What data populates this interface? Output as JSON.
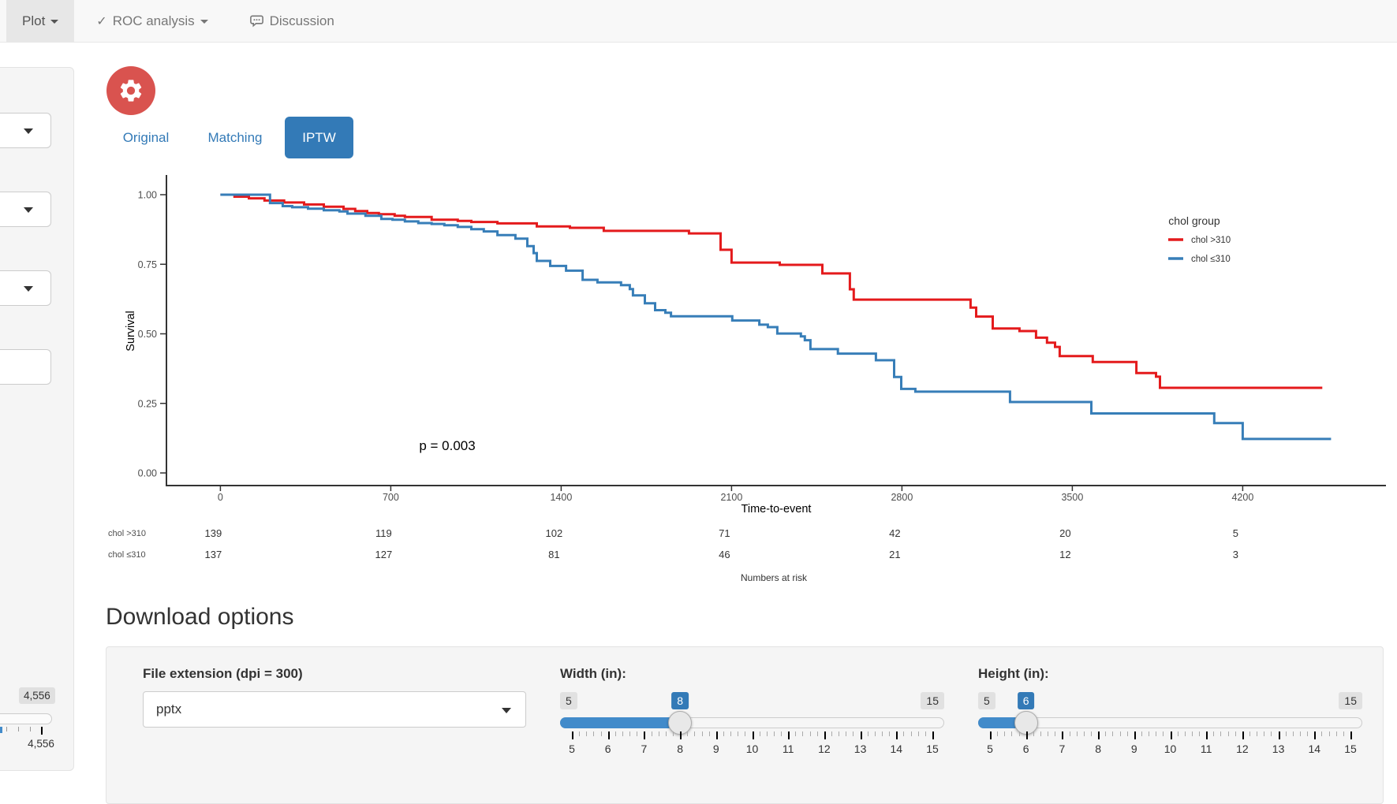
{
  "navbar": {
    "items": [
      {
        "label": "Plot",
        "active": true,
        "caret": true
      },
      {
        "label": "ROC analysis",
        "active": false,
        "caret": true,
        "icon": "check"
      },
      {
        "label": "Discussion",
        "active": false,
        "icon": "comment"
      }
    ]
  },
  "sidebar": {
    "value_badge": "4,556",
    "tick_label": "4,556"
  },
  "plot_tabs": {
    "items": [
      {
        "label": "Original",
        "active": false
      },
      {
        "label": "Matching",
        "active": false
      },
      {
        "label": "IPTW",
        "active": true
      }
    ]
  },
  "chart_data": {
    "type": "line",
    "subtype": "kaplan-meier-step",
    "xlabel": "Time-to-event",
    "ylabel": "Survival",
    "xlim": [
      0,
      4560
    ],
    "ylim": [
      0,
      1
    ],
    "xticks": [
      0,
      700,
      1400,
      2100,
      2800,
      3500,
      4200
    ],
    "yticks": [
      {
        "value": 0,
        "label": "0.00"
      },
      {
        "value": 0.25,
        "label": "0.25"
      },
      {
        "value": 0.5,
        "label": "0.50"
      },
      {
        "value": 0.75,
        "label": "0.75"
      },
      {
        "value": 1,
        "label": "1.00"
      }
    ],
    "grid": false,
    "pvalue": "p = 0.003",
    "legend": {
      "title": "chol group",
      "position": "right-top",
      "entries": [
        {
          "label": "chol >310",
          "color": "#e41a1c"
        },
        {
          "label": "chol ≤310",
          "color": "#377eb8"
        }
      ]
    },
    "series": [
      {
        "name": "chol >310",
        "color": "#e41a1c",
        "points": [
          [
            0,
            1.0
          ],
          [
            58,
            0.993
          ],
          [
            117,
            0.987
          ],
          [
            181,
            0.979
          ],
          [
            262,
            0.972
          ],
          [
            344,
            0.965
          ],
          [
            425,
            0.957
          ],
          [
            506,
            0.949
          ],
          [
            554,
            0.941
          ],
          [
            603,
            0.934
          ],
          [
            651,
            0.93
          ],
          [
            716,
            0.924
          ],
          [
            758,
            0.92
          ],
          [
            868,
            0.91
          ],
          [
            975,
            0.906
          ],
          [
            1031,
            0.902
          ],
          [
            1138,
            0.897
          ],
          [
            1300,
            0.886
          ],
          [
            1436,
            0.881
          ],
          [
            1575,
            0.87
          ],
          [
            1925,
            0.861
          ],
          [
            2055,
            0.802
          ],
          [
            2100,
            0.756
          ],
          [
            2298,
            0.748
          ],
          [
            2473,
            0.717
          ],
          [
            2586,
            0.66
          ],
          [
            2602,
            0.623
          ],
          [
            3082,
            0.594
          ],
          [
            3105,
            0.562
          ],
          [
            3173,
            0.519
          ],
          [
            3283,
            0.51
          ],
          [
            3351,
            0.486
          ],
          [
            3396,
            0.468
          ],
          [
            3429,
            0.453
          ],
          [
            3448,
            0.42
          ],
          [
            3584,
            0.399
          ],
          [
            3763,
            0.359
          ],
          [
            3844,
            0.346
          ],
          [
            3860,
            0.306
          ],
          [
            4527,
            0.306
          ]
        ]
      },
      {
        "name": "chol ≤310",
        "color": "#377eb8",
        "points": [
          [
            0,
            1.0
          ],
          [
            204,
            0.97
          ],
          [
            256,
            0.959
          ],
          [
            295,
            0.955
          ],
          [
            360,
            0.95
          ],
          [
            425,
            0.944
          ],
          [
            489,
            0.94
          ],
          [
            522,
            0.932
          ],
          [
            596,
            0.924
          ],
          [
            661,
            0.913
          ],
          [
            707,
            0.91
          ],
          [
            758,
            0.904
          ],
          [
            813,
            0.898
          ],
          [
            868,
            0.895
          ],
          [
            920,
            0.89
          ],
          [
            975,
            0.884
          ],
          [
            1031,
            0.876
          ],
          [
            1082,
            0.868
          ],
          [
            1138,
            0.855
          ],
          [
            1212,
            0.842
          ],
          [
            1261,
            0.815
          ],
          [
            1287,
            0.79
          ],
          [
            1300,
            0.762
          ],
          [
            1355,
            0.744
          ],
          [
            1420,
            0.727
          ],
          [
            1488,
            0.694
          ],
          [
            1549,
            0.685
          ],
          [
            1646,
            0.675
          ],
          [
            1682,
            0.661
          ],
          [
            1695,
            0.638
          ],
          [
            1744,
            0.61
          ],
          [
            1786,
            0.585
          ],
          [
            1828,
            0.576
          ],
          [
            1851,
            0.563
          ],
          [
            2103,
            0.548
          ],
          [
            2214,
            0.533
          ],
          [
            2249,
            0.524
          ],
          [
            2288,
            0.501
          ],
          [
            2385,
            0.491
          ],
          [
            2401,
            0.477
          ],
          [
            2424,
            0.445
          ],
          [
            2537,
            0.429
          ],
          [
            2693,
            0.405
          ],
          [
            2768,
            0.345
          ],
          [
            2797,
            0.302
          ],
          [
            2855,
            0.292
          ],
          [
            3244,
            0.255
          ],
          [
            3578,
            0.214
          ],
          [
            4083,
            0.179
          ],
          [
            4200,
            0.122
          ],
          [
            4563,
            0.122
          ]
        ]
      }
    ],
    "risk_table": {
      "title": "Numbers at risk",
      "times": [
        0,
        700,
        1400,
        2100,
        2800,
        3500,
        4200
      ],
      "rows": [
        {
          "label": "chol >310",
          "values": [
            139,
            119,
            102,
            71,
            42,
            20,
            5
          ]
        },
        {
          "label": "chol ≤310",
          "values": [
            137,
            127,
            81,
            46,
            21,
            12,
            3
          ]
        }
      ]
    }
  },
  "download": {
    "heading": "Download options",
    "file_extension": {
      "label": "File extension (dpi = 300)",
      "value": "pptx"
    },
    "width_slider": {
      "label": "Width (in):",
      "min": 5,
      "max": 15,
      "value": 8
    },
    "height_slider": {
      "label": "Height (in):",
      "min": 5,
      "max": 15,
      "value": 6
    }
  }
}
